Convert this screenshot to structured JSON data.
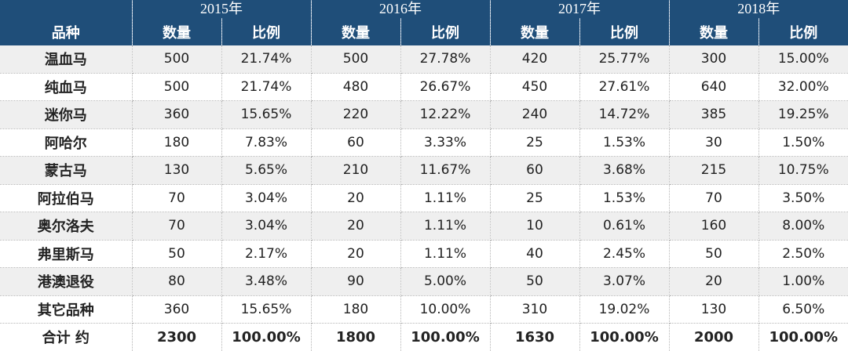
{
  "header": {
    "years": [
      "2015年",
      "2016年",
      "2017年",
      "2018年"
    ],
    "col_name": "品种",
    "col_count": "数量",
    "col_pct": "比例"
  },
  "rows": [
    {
      "name": "温血马",
      "values": [
        "500",
        "21.74%",
        "500",
        "27.78%",
        "420",
        "25.77%",
        "300",
        "15.00%"
      ]
    },
    {
      "name": "纯血马",
      "values": [
        "500",
        "21.74%",
        "480",
        "26.67%",
        "450",
        "27.61%",
        "640",
        "32.00%"
      ]
    },
    {
      "name": "迷你马",
      "values": [
        "360",
        "15.65%",
        "220",
        "12.22%",
        "240",
        "14.72%",
        "385",
        "19.25%"
      ]
    },
    {
      "name": "阿哈尔",
      "values": [
        "180",
        "7.83%",
        "60",
        "3.33%",
        "25",
        "1.53%",
        "30",
        "1.50%"
      ]
    },
    {
      "name": "蒙古马",
      "values": [
        "130",
        "5.65%",
        "210",
        "11.67%",
        "60",
        "3.68%",
        "215",
        "10.75%"
      ]
    },
    {
      "name": "阿拉伯马",
      "values": [
        "70",
        "3.04%",
        "20",
        "1.11%",
        "25",
        "1.53%",
        "70",
        "3.50%"
      ]
    },
    {
      "name": "奥尔洛夫",
      "values": [
        "70",
        "3.04%",
        "20",
        "1.11%",
        "10",
        "0.61%",
        "160",
        "8.00%"
      ]
    },
    {
      "name": "弗里斯马",
      "values": [
        "50",
        "2.17%",
        "20",
        "1.11%",
        "40",
        "2.45%",
        "50",
        "2.50%"
      ]
    },
    {
      "name": "港澳退役",
      "values": [
        "80",
        "3.48%",
        "90",
        "5.00%",
        "50",
        "3.07%",
        "20",
        "1.00%"
      ]
    },
    {
      "name": "其它品种",
      "values": [
        "360",
        "15.65%",
        "180",
        "10.00%",
        "310",
        "19.02%",
        "130",
        "6.50%"
      ]
    }
  ],
  "total": {
    "name": "合计 约",
    "values": [
      "2300",
      "100.00%",
      "1800",
      "100.00%",
      "1630",
      "100.00%",
      "2000",
      "100.00%"
    ]
  },
  "colors": {
    "header_bg": "#1f4e79",
    "stripe_bg": "#efefef"
  }
}
